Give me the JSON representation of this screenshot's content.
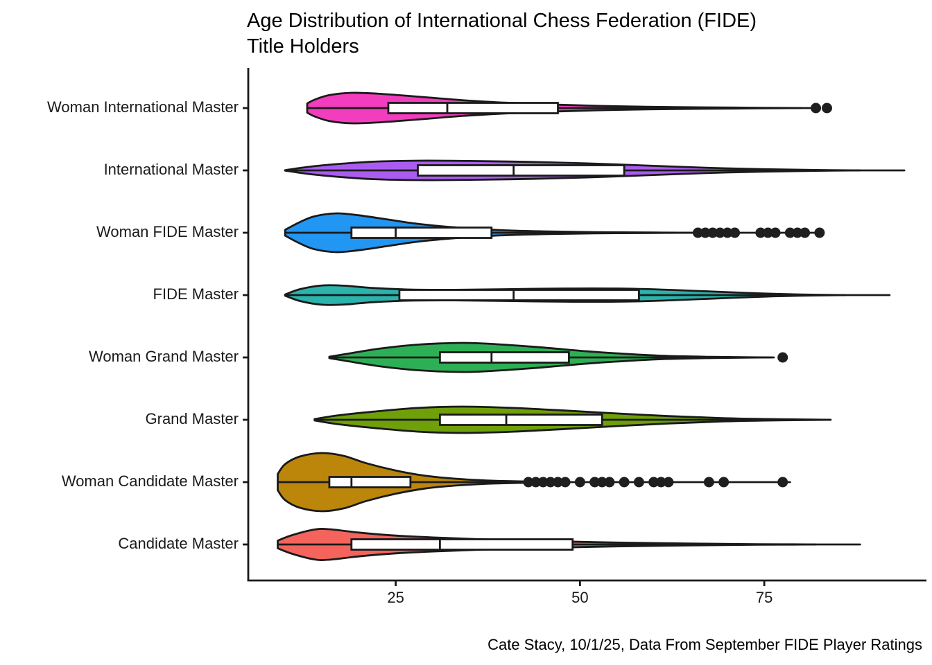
{
  "title": {
    "line1": "Age Distribution of International Chess Federation (FIDE)",
    "line2": "Title Holders"
  },
  "caption": "Cate Stacy, 10/1/25, Data From September FIDE Player Ratings",
  "chart_data": {
    "type": "violin",
    "orientation": "horizontal",
    "title": "Age Distribution of International Chess Federation (FIDE) Title Holders",
    "xlabel": "",
    "ylabel": "",
    "x_domain": [
      5,
      97
    ],
    "x_ticks": [
      {
        "value": 25,
        "label": "25"
      },
      {
        "value": 50,
        "label": "50"
      },
      {
        "value": 75,
        "label": "75"
      }
    ],
    "grid": "off",
    "legend": "none",
    "ink_color": "#1a1a1a",
    "box_fill": "#ffffff",
    "series": [
      {
        "label": "Woman International Master",
        "color": "#F23EBE",
        "min": 13,
        "q1": 24,
        "median": 32,
        "q3": 47,
        "line_end": 81.5,
        "outliers": [
          82,
          83.5
        ],
        "half_width": 22,
        "density": [
          [
            13,
            0.3
          ],
          [
            14,
            0.55
          ],
          [
            16,
            0.85
          ],
          [
            19,
            1.0
          ],
          [
            23,
            0.93
          ],
          [
            28,
            0.75
          ],
          [
            34,
            0.52
          ],
          [
            40,
            0.35
          ],
          [
            47,
            0.22
          ],
          [
            55,
            0.12
          ],
          [
            63,
            0.06
          ],
          [
            71,
            0.03
          ],
          [
            80,
            0.0
          ]
        ]
      },
      {
        "label": "International Master",
        "color": "#AB5CF0",
        "min": 10,
        "q1": 28,
        "median": 41,
        "q3": 56,
        "line_end": 94,
        "outliers": [],
        "half_width": 14,
        "density": [
          [
            10,
            0.02
          ],
          [
            13,
            0.35
          ],
          [
            17,
            0.65
          ],
          [
            22,
            0.9
          ],
          [
            28,
            1.0
          ],
          [
            35,
            0.97
          ],
          [
            43,
            0.88
          ],
          [
            51,
            0.72
          ],
          [
            59,
            0.5
          ],
          [
            67,
            0.28
          ],
          [
            75,
            0.12
          ],
          [
            82,
            0.04
          ],
          [
            88,
            0.0
          ]
        ]
      },
      {
        "label": "Woman FIDE Master",
        "color": "#2196F3",
        "min": 10,
        "q1": 19,
        "median": 25,
        "q3": 38,
        "line_end": 82.5,
        "outliers": [
          66,
          67,
          68,
          69,
          70,
          71,
          74.5,
          75.5,
          76.5,
          78.5,
          79.5,
          80.5,
          82.5
        ],
        "half_width": 28,
        "density": [
          [
            10,
            0.15
          ],
          [
            12,
            0.55
          ],
          [
            14,
            0.85
          ],
          [
            17,
            1.0
          ],
          [
            20,
            0.9
          ],
          [
            24,
            0.68
          ],
          [
            28,
            0.46
          ],
          [
            33,
            0.28
          ],
          [
            39,
            0.14
          ],
          [
            45,
            0.07
          ],
          [
            52,
            0.03
          ],
          [
            60,
            0.01
          ],
          [
            66,
            0.0
          ]
        ]
      },
      {
        "label": "FIDE Master",
        "color": "#2BB3AC",
        "min": 10,
        "q1": 25.5,
        "median": 41,
        "q3": 58,
        "line_end": 92,
        "outliers": [],
        "half_width": 17,
        "density": [
          [
            10,
            0.05
          ],
          [
            12,
            0.5
          ],
          [
            15,
            0.82
          ],
          [
            18,
            0.8
          ],
          [
            22,
            0.6
          ],
          [
            27,
            0.47
          ],
          [
            33,
            0.45
          ],
          [
            40,
            0.5
          ],
          [
            48,
            0.56
          ],
          [
            56,
            0.55
          ],
          [
            62,
            0.45
          ],
          [
            68,
            0.3
          ],
          [
            74,
            0.15
          ],
          [
            80,
            0.05
          ],
          [
            86,
            0.0
          ]
        ]
      },
      {
        "label": "Woman Grand Master",
        "color": "#2DB055",
        "min": 16,
        "q1": 31,
        "median": 38,
        "q3": 48.5,
        "line_end": 76.3,
        "outliers": [
          77.5
        ],
        "half_width": 21,
        "density": [
          [
            16,
            0.05
          ],
          [
            19,
            0.3
          ],
          [
            23,
            0.62
          ],
          [
            28,
            0.88
          ],
          [
            34,
            1.0
          ],
          [
            39,
            0.9
          ],
          [
            45,
            0.68
          ],
          [
            51,
            0.42
          ],
          [
            57,
            0.22
          ],
          [
            62,
            0.1
          ],
          [
            68,
            0.04
          ],
          [
            73,
            0.01
          ],
          [
            76,
            0.0
          ]
        ]
      },
      {
        "label": "Grand Master",
        "color": "#6FA00A",
        "min": 14,
        "q1": 31,
        "median": 40,
        "q3": 53,
        "line_end": 84,
        "outliers": [],
        "half_width": 19,
        "density": [
          [
            14,
            0.05
          ],
          [
            17,
            0.32
          ],
          [
            22,
            0.62
          ],
          [
            28,
            0.9
          ],
          [
            34,
            1.0
          ],
          [
            41,
            0.9
          ],
          [
            48,
            0.7
          ],
          [
            55,
            0.48
          ],
          [
            62,
            0.28
          ],
          [
            69,
            0.13
          ],
          [
            76,
            0.05
          ],
          [
            82,
            0.01
          ],
          [
            84,
            0.0
          ]
        ]
      },
      {
        "label": "Woman Candidate Master",
        "color": "#BC860B",
        "min": 9,
        "q1": 16,
        "median": 19,
        "q3": 27,
        "line_end": 78.5,
        "outliers": [
          43,
          44,
          45,
          46,
          47,
          48,
          50,
          52,
          53,
          54,
          56,
          58,
          60,
          61,
          62,
          67.5,
          69.5,
          77.5
        ],
        "half_width": 42,
        "density": [
          [
            9,
            0.28
          ],
          [
            10,
            0.62
          ],
          [
            12,
            0.88
          ],
          [
            15,
            1.0
          ],
          [
            18,
            0.9
          ],
          [
            21,
            0.65
          ],
          [
            25,
            0.4
          ],
          [
            29,
            0.22
          ],
          [
            33,
            0.12
          ],
          [
            38,
            0.05
          ],
          [
            43,
            0.02
          ],
          [
            46,
            0.0
          ]
        ]
      },
      {
        "label": "Candidate Master",
        "color": "#F4645C",
        "min": 9,
        "q1": 19,
        "median": 31,
        "q3": 49,
        "line_end": 88,
        "outliers": [],
        "half_width": 22,
        "density": [
          [
            9,
            0.25
          ],
          [
            11,
            0.62
          ],
          [
            14,
            0.98
          ],
          [
            16,
            1.0
          ],
          [
            20,
            0.78
          ],
          [
            25,
            0.58
          ],
          [
            31,
            0.44
          ],
          [
            38,
            0.32
          ],
          [
            45,
            0.23
          ],
          [
            52,
            0.15
          ],
          [
            60,
            0.09
          ],
          [
            67,
            0.05
          ],
          [
            74,
            0.02
          ],
          [
            82,
            0.0
          ]
        ]
      }
    ]
  }
}
